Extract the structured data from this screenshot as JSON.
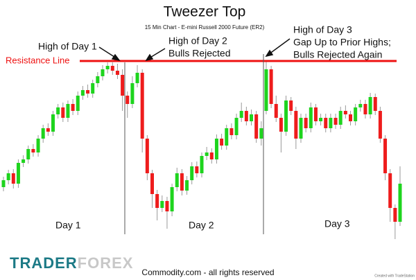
{
  "chart_data": {
    "type": "candlestick",
    "title": "Tweezer Top",
    "subtitle": "15 Min Chart - E-mini Russell 2000 Future (ER2)",
    "open": [
      130,
      140,
      150,
      135,
      165,
      170,
      185,
      180,
      200,
      215,
      210,
      235,
      245,
      230,
      250,
      240,
      262,
      270,
      265,
      280,
      290,
      300,
      305,
      298,
      292,
      262,
      250,
      280,
      295,
      200,
      150,
      120,
      100,
      110,
      95,
      130,
      150,
      125,
      140,
      160,
      150,
      175,
      180,
      170,
      200,
      190,
      215,
      205,
      230,
      240,
      225,
      235,
      200,
      240,
      300,
      250,
      230,
      210,
      255,
      240,
      200,
      230,
      215,
      245,
      225,
      230,
      215,
      230,
      220,
      240,
      235,
      225,
      245,
      250,
      235,
      260,
      240,
      200,
      150,
      100,
      80
    ],
    "high": [
      145,
      155,
      156,
      170,
      176,
      190,
      192,
      205,
      220,
      222,
      240,
      250,
      252,
      255,
      257,
      268,
      276,
      278,
      285,
      296,
      306,
      310,
      310,
      308,
      300,
      268,
      290,
      306,
      300,
      205,
      155,
      126,
      118,
      116,
      135,
      158,
      156,
      146,
      166,
      167,
      180,
      188,
      186,
      206,
      207,
      220,
      222,
      236,
      252,
      246,
      242,
      240,
      225,
      312,
      305,
      262,
      236,
      262,
      260,
      246,
      236,
      236,
      252,
      250,
      236,
      236,
      236,
      236,
      246,
      248,
      240,
      250,
      256,
      256,
      266,
      265,
      246,
      205,
      156,
      105,
      160
    ],
    "low": [
      124,
      134,
      128,
      129,
      159,
      164,
      174,
      174,
      194,
      204,
      204,
      229,
      224,
      224,
      234,
      234,
      256,
      259,
      259,
      274,
      284,
      294,
      292,
      286,
      240,
      230,
      244,
      274,
      180,
      140,
      100,
      82,
      94,
      70,
      88,
      124,
      118,
      119,
      134,
      144,
      144,
      169,
      164,
      164,
      184,
      184,
      199,
      199,
      224,
      219,
      219,
      194,
      190,
      235,
      244,
      224,
      180,
      204,
      234,
      185,
      194,
      209,
      209,
      219,
      219,
      209,
      209,
      214,
      214,
      229,
      219,
      219,
      239,
      229,
      229,
      234,
      194,
      140,
      80,
      55,
      74
    ],
    "close": [
      140,
      150,
      135,
      165,
      170,
      185,
      180,
      200,
      215,
      210,
      235,
      245,
      230,
      250,
      240,
      262,
      270,
      265,
      280,
      290,
      300,
      305,
      298,
      292,
      262,
      250,
      280,
      295,
      200,
      150,
      120,
      100,
      110,
      95,
      130,
      150,
      125,
      140,
      160,
      150,
      175,
      180,
      170,
      200,
      190,
      215,
      205,
      230,
      240,
      225,
      235,
      200,
      215,
      300,
      250,
      230,
      210,
      255,
      240,
      200,
      230,
      215,
      245,
      225,
      230,
      215,
      230,
      220,
      240,
      235,
      225,
      245,
      250,
      235,
      260,
      240,
      200,
      150,
      100,
      80,
      135
    ],
    "up_color": "#1ed41e",
    "down_color": "#ee1c1c",
    "resistance_color": "#ee1111",
    "resistance_label": "Resistance Line",
    "annotations": [
      "High of Day 1",
      "High of Day 2",
      "Bulls Rejected",
      "High of Day 3",
      "Gap Up to Prior Highs;",
      "Bulls Rejected Again"
    ],
    "day_labels": [
      "Day 1",
      "Day 2",
      "Day 3"
    ],
    "brand": [
      "TRADER",
      "FOREX"
    ],
    "footer": "Commodity.com - all rights reserved",
    "credit": "Created with TradeStation"
  }
}
